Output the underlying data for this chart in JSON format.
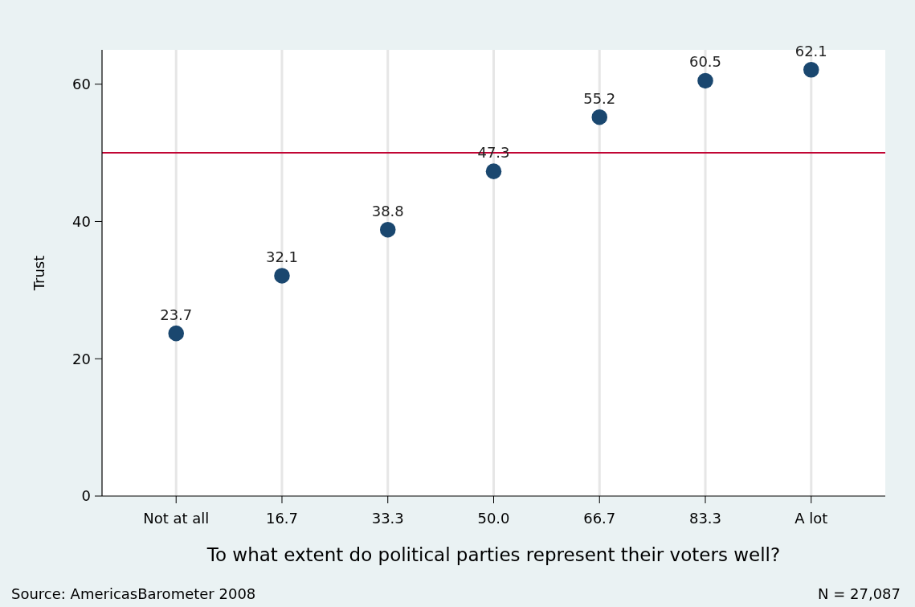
{
  "chart_data": {
    "type": "scatter",
    "xlabel": "To what extent do political parties represent their voters well?",
    "ylabel": "Trust",
    "categories": [
      "Not at all",
      "16.7",
      "33.3",
      "50.0",
      "66.7",
      "83.3",
      "A lot"
    ],
    "series": [
      {
        "color": "#1a476f",
        "values": [
          23.7,
          32.1,
          38.8,
          47.3,
          55.2,
          60.5,
          62.1
        ]
      }
    ],
    "ylim": [
      0,
      65
    ],
    "yticks": [
      0,
      20,
      40,
      60
    ],
    "grid": "x",
    "marker": "circle",
    "data_labels": true,
    "ref_lines": [
      {
        "axis": "y",
        "value": 50,
        "color": "#c10534"
      }
    ],
    "annotations": [
      "Source: AmericasBarometer 2008",
      "N = 27,087"
    ]
  }
}
